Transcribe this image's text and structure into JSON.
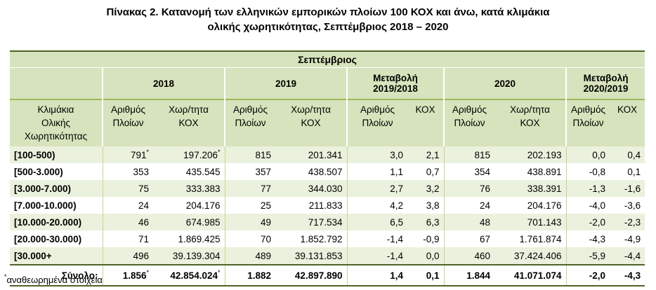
{
  "title_line1": "Πίνακας 2. Κατανομή των ελληνικών εμπορικών πλοίων 100 ΚΟΧ και άνω, κατά κλιμάκια",
  "title_line2": "ολικής χωρητικότητας, Σεπτέμβριος 2018 – 2020",
  "month_header": "Σεπτέμβριος",
  "group_headers": {
    "y2018": "2018",
    "y2019": "2019",
    "change_1918_l1": "Μεταβολή",
    "change_1918_l2": "2019/2018",
    "y2020": "2020",
    "change_2019_l1": "Μεταβολή",
    "change_2019_l2": "2020/2019"
  },
  "sub_headers": {
    "cat_l1": "Κλιμάκια",
    "cat_l2": "Ολικής",
    "cat_l3": "Χωρητικότητας",
    "ships_l1": "Αριθμός",
    "ships_l2": "Πλοίων",
    "grt_l1": "Χωρ/τητα",
    "grt_l2": "ΚΟΧ",
    "kox": "ΚΟΧ"
  },
  "rows": [
    {
      "cat": "[100-500)",
      "s18": "791",
      "s18_mark": "*",
      "g18": "197.206",
      "g18_mark": "*",
      "s19": "815",
      "g19": "201.341",
      "cs1": "3,0",
      "cg1": "2,1",
      "s20": "815",
      "g20": "202.193",
      "cs2": "0,0",
      "cg2": "0,4"
    },
    {
      "cat": "[500-3.000)",
      "s18": "353",
      "s18_mark": "",
      "g18": "435.545",
      "g18_mark": "",
      "s19": "357",
      "g19": "438.507",
      "cs1": "1,1",
      "cg1": "0,7",
      "s20": "354",
      "g20": "438.891",
      "cs2": "-0,8",
      "cg2": "0,1"
    },
    {
      "cat": "[3.000-7.000)",
      "s18": "75",
      "s18_mark": "",
      "g18": "333.383",
      "g18_mark": "",
      "s19": "77",
      "g19": "344.030",
      "cs1": "2,7",
      "cg1": "3,2",
      "s20": "76",
      "g20": "338.391",
      "cs2": "-1,3",
      "cg2": "-1,6"
    },
    {
      "cat": "[7.000-10.000)",
      "s18": "24",
      "s18_mark": "",
      "g18": "204.176",
      "g18_mark": "",
      "s19": "25",
      "g19": "211.833",
      "cs1": "4,2",
      "cg1": "3,8",
      "s20": "24",
      "g20": "204.176",
      "cs2": "-4,0",
      "cg2": "-3,6"
    },
    {
      "cat": "[10.000-20.000)",
      "s18": "46",
      "s18_mark": "",
      "g18": "674.985",
      "g18_mark": "",
      "s19": "49",
      "g19": "717.534",
      "cs1": "6,5",
      "cg1": "6,3",
      "s20": "48",
      "g20": "701.143",
      "cs2": "-2,0",
      "cg2": "-2,3"
    },
    {
      "cat": "[20.000-30.000)",
      "s18": "71",
      "s18_mark": "",
      "g18": "1.869.425",
      "g18_mark": "",
      "s19": "70",
      "g19": "1.852.792",
      "cs1": "-1,4",
      "cg1": "-0,9",
      "s20": "67",
      "g20": "1.761.874",
      "cs2": "-4,3",
      "cg2": "-4,9"
    },
    {
      "cat": "[30.000+",
      "s18": "496",
      "s18_mark": "",
      "g18": "39.139.304",
      "g18_mark": "",
      "s19": "489",
      "g19": "39.131.853",
      "cs1": "-1,4",
      "cg1": "0,0",
      "s20": "460",
      "g20": "37.424.406",
      "cs2": "-5,9",
      "cg2": "-4,4"
    }
  ],
  "total": {
    "cat": "Σύνολο:",
    "s18": "1.856",
    "s18_mark": "*",
    "g18": "42.854.024",
    "g18_mark": "*",
    "s19": "1.882",
    "g19": "42.897.890",
    "cs1": "1,4",
    "cg1": "0,1",
    "s20": "1.844",
    "g20": "41.071.074",
    "cs2": "-2,0",
    "cg2": "-4,3"
  },
  "footnote_mark": "*",
  "footnote_text": "αναθεωρημένα στοιχεία"
}
